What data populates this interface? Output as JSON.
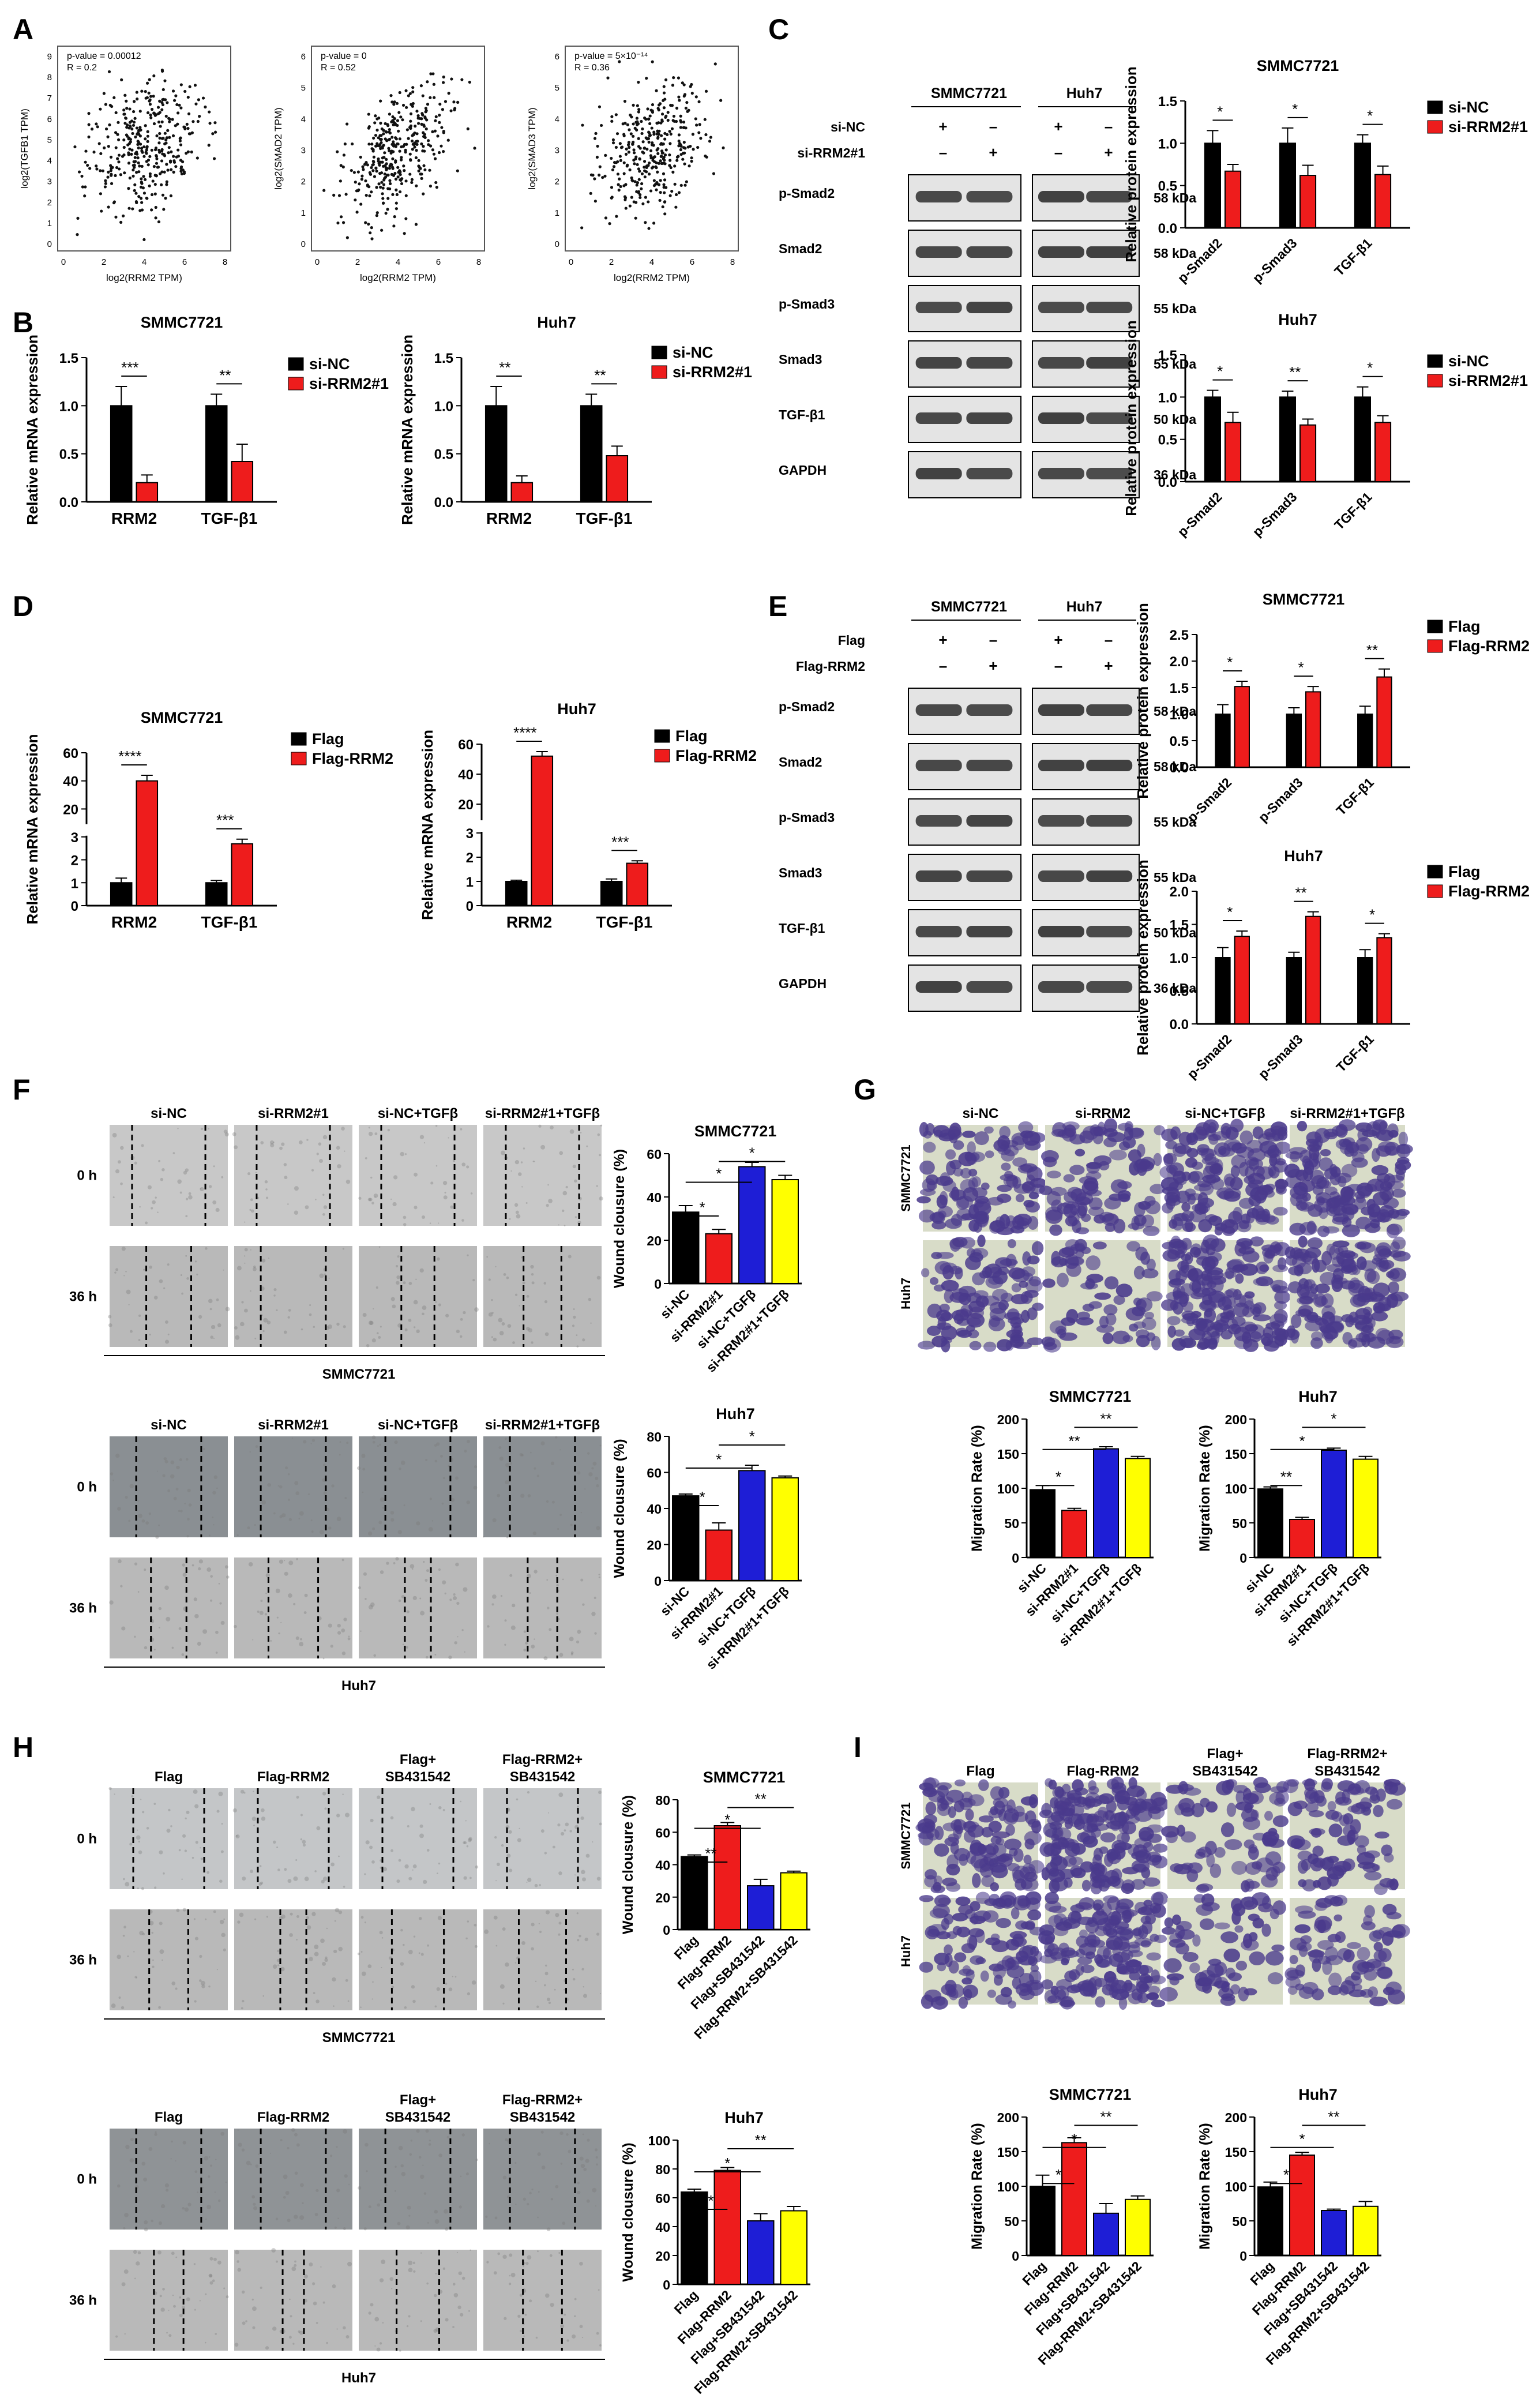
{
  "panels": {
    "A": {
      "letter": "A",
      "plots": [
        {
          "stats": [
            "p-value = 0.00012",
            "R = 0.2"
          ],
          "ylabel": "log2(TGFB1 TPM)",
          "xlabel": "log2(RRM2 TPM)",
          "xticks": [
            "0",
            "2",
            "4",
            "6",
            "8"
          ],
          "yticks": [
            "0",
            "1",
            "2",
            "3",
            "4",
            "5",
            "6",
            "7",
            "8",
            "9"
          ],
          "corr": 0.2
        },
        {
          "stats": [
            "p-value = 0",
            "R = 0.52"
          ],
          "ylabel": "log2(SMAD2 TPM)",
          "xlabel": "log2(RRM2 TPM)",
          "xticks": [
            "0",
            "2",
            "4",
            "6",
            "8"
          ],
          "yticks": [
            "0",
            "1",
            "2",
            "3",
            "4",
            "5",
            "6"
          ],
          "corr": 0.52
        },
        {
          "stats": [
            "p-value = 5×10⁻¹⁴",
            "R = 0.36"
          ],
          "ylabel": "log2(SMAD3 TPM)",
          "xlabel": "log2(RRM2 TPM)",
          "xticks": [
            "0",
            "2",
            "4",
            "6",
            "8"
          ],
          "yticks": [
            "0",
            "1",
            "2",
            "3",
            "4",
            "5",
            "6"
          ],
          "corr": 0.36
        }
      ]
    },
    "B": {
      "letter": "B"
    },
    "C": {
      "letter": "C",
      "cells": [
        "SMMC7721",
        "Huh7"
      ],
      "rows": [
        "si-NC",
        "si-RRM2#1"
      ],
      "signs": [
        [
          "+",
          "–",
          "+",
          "–"
        ],
        [
          "–",
          "+",
          "–",
          "+"
        ]
      ],
      "bands": [
        {
          "name": "p-Smad2",
          "kda": "58 kDa"
        },
        {
          "name": "Smad2",
          "kda": "58 kDa"
        },
        {
          "name": "p-Smad3",
          "kda": "55 kDa"
        },
        {
          "name": "Smad3",
          "kda": "55 kDa"
        },
        {
          "name": "TGF-β1",
          "kda": "50 kDa"
        },
        {
          "name": "GAPDH",
          "kda": "36 kDa"
        }
      ]
    },
    "D": {
      "letter": "D"
    },
    "E": {
      "letter": "E",
      "cells": [
        "SMMC7721",
        "Huh7"
      ],
      "rows": [
        "Flag",
        "Flag-RRM2"
      ],
      "signs": [
        [
          "+",
          "–",
          "+",
          "–"
        ],
        [
          "–",
          "+",
          "–",
          "+"
        ]
      ],
      "bands": [
        {
          "name": "p-Smad2",
          "kda": "58 kDa"
        },
        {
          "name": "Smad2",
          "kda": "58 kDa"
        },
        {
          "name": "p-Smad3",
          "kda": "55 kDa"
        },
        {
          "name": "Smad3",
          "kda": "55 kDa"
        },
        {
          "name": "TGF-β1",
          "kda": "50 kDa"
        },
        {
          "name": "GAPDH",
          "kda": "36 kDa"
        }
      ]
    },
    "F": {
      "letter": "F",
      "headers_top": [
        "si-NC",
        "si-RRM2#1",
        "si-NC+TGFβ",
        "si-RRM2#1+TGFβ"
      ],
      "headers_bottom": [
        "si-NC",
        "si-RRM2#1",
        "si-NC+TGFβ",
        "si-RRM2#1+TGFβ"
      ],
      "times": [
        "0 h",
        "36 h"
      ],
      "cell_top": "SMMC7721",
      "cell_bottom": "Huh7"
    },
    "G": {
      "letter": "G",
      "headers": [
        "si-NC",
        "si-RRM2",
        "si-NC+TGFβ",
        "si-RRM2#1+TGFβ"
      ],
      "rows": [
        "SMMC7721",
        "Huh7"
      ]
    },
    "H": {
      "letter": "H",
      "headers": [
        "Flag",
        "Flag-RRM2",
        "Flag+\nSB431542",
        "Flag-RRM2+\nSB431542"
      ],
      "times": [
        "0 h",
        "36 h"
      ],
      "cell_top": "SMMC7721",
      "cell_bottom": "Huh7"
    },
    "I": {
      "letter": "I",
      "headers": [
        "Flag",
        "Flag-RRM2",
        "Flag+\nSB431542",
        "Flag-RRM2+\nSB431542"
      ],
      "rows": [
        "SMMC7721",
        "Huh7"
      ]
    }
  },
  "colors": {
    "black": "#000000",
    "red": "#ee1c1c",
    "blue": "#1e1ed6",
    "yellow": "#ffff00"
  },
  "chart_data": [
    {
      "id": "B1",
      "type": "bar",
      "title": "SMMC7721",
      "ylabel": "Relative mRNA expression",
      "categories": [
        "RRM2",
        "TGF-β1"
      ],
      "ylim": [
        0,
        1.5
      ],
      "yticks": [
        "0.0",
        "0.5",
        "1.0",
        "1.5"
      ],
      "series": [
        {
          "name": "si-NC",
          "color": "#000000",
          "values": [
            1.0,
            1.0
          ],
          "err": [
            0.2,
            0.12
          ]
        },
        {
          "name": "si-RRM2#1",
          "color": "#ee1c1c",
          "values": [
            0.2,
            0.42
          ],
          "err": [
            0.08,
            0.18
          ]
        }
      ],
      "sig": [
        {
          "cat": 0,
          "text": "***"
        },
        {
          "cat": 1,
          "text": "**"
        }
      ]
    },
    {
      "id": "B2",
      "type": "bar",
      "title": "Huh7",
      "ylabel": "Relative mRNA expression",
      "categories": [
        "RRM2",
        "TGF-β1"
      ],
      "ylim": [
        0,
        1.5
      ],
      "yticks": [
        "0.0",
        "0.5",
        "1.0",
        "1.5"
      ],
      "series": [
        {
          "name": "si-NC",
          "color": "#000000",
          "values": [
            1.0,
            1.0
          ],
          "err": [
            0.2,
            0.12
          ]
        },
        {
          "name": "si-RRM2#1",
          "color": "#ee1c1c",
          "values": [
            0.2,
            0.48
          ],
          "err": [
            0.07,
            0.1
          ]
        }
      ],
      "sig": [
        {
          "cat": 0,
          "text": "**"
        },
        {
          "cat": 1,
          "text": "**"
        }
      ]
    },
    {
      "id": "C1",
      "type": "bar",
      "title": "SMMC7721",
      "ylabel": "Relative protein expression",
      "categories": [
        "p-Smad2",
        "p-Smad3",
        "TGF-β1"
      ],
      "ylim": [
        0,
        1.5
      ],
      "yticks": [
        "0.0",
        "0.5",
        "1.0",
        "1.5"
      ],
      "series": [
        {
          "name": "si-NC",
          "color": "#000000",
          "values": [
            1.0,
            1.0,
            1.0
          ],
          "err": [
            0.15,
            0.18,
            0.1
          ]
        },
        {
          "name": "si-RRM2#1",
          "color": "#ee1c1c",
          "values": [
            0.67,
            0.62,
            0.63
          ],
          "err": [
            0.08,
            0.12,
            0.1
          ]
        }
      ],
      "sig": [
        {
          "cat": 0,
          "text": "*"
        },
        {
          "cat": 1,
          "text": "*"
        },
        {
          "cat": 2,
          "text": "*"
        }
      ]
    },
    {
      "id": "C2",
      "type": "bar",
      "title": "Huh7",
      "ylabel": "Relative protein expression",
      "categories": [
        "p-Smad2",
        "p-Smad3",
        "TGF-β1"
      ],
      "ylim": [
        0,
        1.5
      ],
      "yticks": [
        "0.0",
        "0.5",
        "1.0",
        "1.5"
      ],
      "series": [
        {
          "name": "si-NC",
          "color": "#000000",
          "values": [
            1.0,
            1.0,
            1.0
          ],
          "err": [
            0.08,
            0.07,
            0.12
          ]
        },
        {
          "name": "si-RRM2#1",
          "color": "#ee1c1c",
          "values": [
            0.7,
            0.67,
            0.7
          ],
          "err": [
            0.12,
            0.07,
            0.08
          ]
        }
      ],
      "sig": [
        {
          "cat": 0,
          "text": "*"
        },
        {
          "cat": 1,
          "text": "**"
        },
        {
          "cat": 2,
          "text": "*"
        }
      ]
    },
    {
      "id": "D1",
      "type": "bar",
      "title": "SMMC7721",
      "ylabel": "Relative mRNA expression",
      "categories": [
        "RRM2",
        "TGF-β1"
      ],
      "broken_axis": true,
      "yticks": [
        "0",
        "1",
        "2",
        "3",
        "20",
        "40",
        "60"
      ],
      "series": [
        {
          "name": "Flag",
          "color": "#000000",
          "values": [
            1.0,
            1.0
          ],
          "err": [
            0.2,
            0.1
          ]
        },
        {
          "name": "Flag-RRM2",
          "color": "#ee1c1c",
          "values": [
            40,
            2.7
          ],
          "err": [
            4,
            0.2
          ]
        }
      ],
      "sig": [
        {
          "cat": 0,
          "text": "****"
        },
        {
          "cat": 1,
          "text": "***"
        }
      ]
    },
    {
      "id": "D2",
      "type": "bar",
      "title": "Huh7",
      "ylabel": "Relative mRNA expression",
      "categories": [
        "RRM2",
        "TGF-β1"
      ],
      "broken_axis": true,
      "yticks": [
        "0",
        "1",
        "2",
        "3",
        "20",
        "40",
        "60"
      ],
      "series": [
        {
          "name": "Flag",
          "color": "#000000",
          "values": [
            1.0,
            1.0
          ],
          "err": [
            0.05,
            0.1
          ]
        },
        {
          "name": "Flag-RRM2",
          "color": "#ee1c1c",
          "values": [
            52,
            1.75
          ],
          "err": [
            3,
            0.1
          ]
        }
      ],
      "sig": [
        {
          "cat": 0,
          "text": "****"
        },
        {
          "cat": 1,
          "text": "***"
        }
      ]
    },
    {
      "id": "E1",
      "type": "bar",
      "title": "SMMC7721",
      "ylabel": "Relative protein expression",
      "categories": [
        "p-Smad2",
        "p-Smad3",
        "TGF-β1"
      ],
      "ylim": [
        0,
        2.5
      ],
      "yticks": [
        "0.0",
        "0.5",
        "1.0",
        "1.5",
        "2.0",
        "2.5"
      ],
      "series": [
        {
          "name": "Flag",
          "color": "#000000",
          "values": [
            1.0,
            1.0,
            1.0
          ],
          "err": [
            0.18,
            0.12,
            0.15
          ]
        },
        {
          "name": "Flag-RRM2",
          "color": "#ee1c1c",
          "values": [
            1.52,
            1.42,
            1.7
          ],
          "err": [
            0.1,
            0.1,
            0.15
          ]
        }
      ],
      "sig": [
        {
          "cat": 0,
          "text": "*"
        },
        {
          "cat": 1,
          "text": "*"
        },
        {
          "cat": 2,
          "text": "**"
        }
      ]
    },
    {
      "id": "E2",
      "type": "bar",
      "title": "Huh7",
      "ylabel": "Relative protein expression",
      "categories": [
        "p-Smad2",
        "p-Smad3",
        "TGF-β1"
      ],
      "ylim": [
        0,
        2.0
      ],
      "yticks": [
        "0.0",
        "0.5",
        "1.0",
        "1.5",
        "2.0"
      ],
      "series": [
        {
          "name": "Flag",
          "color": "#000000",
          "values": [
            1.0,
            1.0,
            1.0
          ],
          "err": [
            0.15,
            0.08,
            0.12
          ]
        },
        {
          "name": "Flag-RRM2",
          "color": "#ee1c1c",
          "values": [
            1.32,
            1.62,
            1.3
          ],
          "err": [
            0.08,
            0.07,
            0.06
          ]
        }
      ],
      "sig": [
        {
          "cat": 0,
          "text": "*"
        },
        {
          "cat": 1,
          "text": "**"
        },
        {
          "cat": 2,
          "text": "*"
        }
      ]
    },
    {
      "id": "F1",
      "type": "bar",
      "title": "SMMC7721",
      "ylabel": "Wound clousure (%)",
      "categories": [
        "si-NC",
        "si-RRM2#1",
        "si-NC+TGFβ",
        "si-RRM2#1+TGFβ"
      ],
      "ylim": [
        0,
        60
      ],
      "yticks": [
        "0",
        "20",
        "40",
        "60"
      ],
      "values": [
        33,
        23,
        54,
        48
      ],
      "err": [
        3,
        2,
        2,
        2
      ],
      "colors": [
        "#000000",
        "#ee1c1c",
        "#1e1ed6",
        "#ffff00"
      ],
      "sig": [
        {
          "from": 0,
          "to": 1,
          "text": "*"
        },
        {
          "from": 0,
          "to": 2,
          "text": "*"
        },
        {
          "from": 1,
          "to": 3,
          "text": "*"
        }
      ]
    },
    {
      "id": "F2",
      "type": "bar",
      "title": "Huh7",
      "ylabel": "Wound clousure (%)",
      "categories": [
        "si-NC",
        "si-RRM2#1",
        "si-NC+TGFβ",
        "si-RRM2#1+TGFβ"
      ],
      "ylim": [
        0,
        80
      ],
      "yticks": [
        "0",
        "20",
        "40",
        "60",
        "80"
      ],
      "values": [
        47,
        28,
        61,
        57
      ],
      "err": [
        1,
        4,
        3,
        1
      ],
      "colors": [
        "#000000",
        "#ee1c1c",
        "#1e1ed6",
        "#ffff00"
      ],
      "sig": [
        {
          "from": 0,
          "to": 1,
          "text": "*"
        },
        {
          "from": 0,
          "to": 2,
          "text": "*"
        },
        {
          "from": 1,
          "to": 3,
          "text": "*"
        }
      ]
    },
    {
      "id": "G1",
      "type": "bar",
      "title": "SMMC7721",
      "ylabel": "Migration Rate (%)",
      "categories": [
        "si-NC",
        "si-RRM2#1",
        "si-NC+TGFβ",
        "si-RRM2#1+TGFβ"
      ],
      "ylim": [
        0,
        200
      ],
      "yticks": [
        "0",
        "50",
        "100",
        "150",
        "200"
      ],
      "values": [
        98,
        68,
        157,
        143
      ],
      "err": [
        6,
        3,
        3,
        3
      ],
      "colors": [
        "#000000",
        "#ee1c1c",
        "#1e1ed6",
        "#ffff00"
      ],
      "sig": [
        {
          "from": 0,
          "to": 1,
          "text": "*"
        },
        {
          "from": 0,
          "to": 2,
          "text": "**"
        },
        {
          "from": 1,
          "to": 3,
          "text": "**"
        }
      ]
    },
    {
      "id": "G2",
      "type": "bar",
      "title": "Huh7",
      "ylabel": "Migration Rate (%)",
      "categories": [
        "si-NC",
        "si-RRM2#1",
        "si-NC+TGFβ",
        "si-RRM2#1+TGFβ"
      ],
      "ylim": [
        0,
        200
      ],
      "yticks": [
        "0",
        "50",
        "100",
        "150",
        "200"
      ],
      "values": [
        99,
        55,
        155,
        142
      ],
      "err": [
        3,
        3,
        3,
        4
      ],
      "colors": [
        "#000000",
        "#ee1c1c",
        "#1e1ed6",
        "#ffff00"
      ],
      "sig": [
        {
          "from": 0,
          "to": 1,
          "text": "**"
        },
        {
          "from": 0,
          "to": 2,
          "text": "*"
        },
        {
          "from": 1,
          "to": 3,
          "text": "*"
        }
      ]
    },
    {
      "id": "H1",
      "type": "bar",
      "title": "SMMC7721",
      "ylabel": "Wound clousure (%)",
      "categories": [
        "Flag",
        "Flag-RRM2",
        "Flag+SB431542",
        "Flag-RRM2+SB431542"
      ],
      "ylim": [
        0,
        80
      ],
      "yticks": [
        "0",
        "20",
        "40",
        "60",
        "80"
      ],
      "values": [
        45,
        64,
        27,
        35
      ],
      "err": [
        1,
        2,
        4,
        1
      ],
      "colors": [
        "#000000",
        "#ee1c1c",
        "#1e1ed6",
        "#ffff00"
      ],
      "sig": [
        {
          "from": 0,
          "to": 1,
          "text": "**"
        },
        {
          "from": 0,
          "to": 2,
          "text": "*"
        },
        {
          "from": 1,
          "to": 3,
          "text": "**"
        }
      ]
    },
    {
      "id": "H2",
      "type": "bar",
      "title": "Huh7",
      "ylabel": "Wound clousure (%)",
      "categories": [
        "Flag",
        "Flag-RRM2",
        "Flag+SB431542",
        "Flag-RRM2+SB431542"
      ],
      "ylim": [
        0,
        100
      ],
      "yticks": [
        "0",
        "20",
        "40",
        "60",
        "80",
        "100"
      ],
      "values": [
        64,
        79,
        44,
        51
      ],
      "err": [
        2,
        2,
        5,
        3
      ],
      "colors": [
        "#000000",
        "#ee1c1c",
        "#1e1ed6",
        "#ffff00"
      ],
      "sig": [
        {
          "from": 0,
          "to": 1,
          "text": "*"
        },
        {
          "from": 0,
          "to": 2,
          "text": "*"
        },
        {
          "from": 1,
          "to": 3,
          "text": "**"
        }
      ]
    },
    {
      "id": "I1",
      "type": "bar",
      "title": "SMMC7721",
      "ylabel": "Migration Rate (%)",
      "categories": [
        "Flag",
        "Flag-RRM2",
        "Flag+SB431542",
        "Flag-RRM2+SB431542"
      ],
      "ylim": [
        0,
        200
      ],
      "yticks": [
        "0",
        "50",
        "100",
        "150",
        "200"
      ],
      "values": [
        100,
        163,
        61,
        81
      ],
      "err": [
        16,
        7,
        14,
        5
      ],
      "colors": [
        "#000000",
        "#ee1c1c",
        "#1e1ed6",
        "#ffff00"
      ],
      "sig": [
        {
          "from": 0,
          "to": 1,
          "text": "*"
        },
        {
          "from": 0,
          "to": 2,
          "text": "*"
        },
        {
          "from": 1,
          "to": 3,
          "text": "**"
        }
      ]
    },
    {
      "id": "I2",
      "type": "bar",
      "title": "Huh7",
      "ylabel": "Migration Rate (%)",
      "categories": [
        "Flag",
        "Flag-RRM2",
        "Flag+SB431542",
        "Flag-RRM2+SB431542"
      ],
      "ylim": [
        0,
        200
      ],
      "yticks": [
        "0",
        "50",
        "100",
        "150",
        "200"
      ],
      "values": [
        99,
        145,
        65,
        71
      ],
      "err": [
        7,
        4,
        2,
        7
      ],
      "colors": [
        "#000000",
        "#ee1c1c",
        "#1e1ed6",
        "#ffff00"
      ],
      "sig": [
        {
          "from": 0,
          "to": 1,
          "text": "*"
        },
        {
          "from": 0,
          "to": 2,
          "text": "*"
        },
        {
          "from": 1,
          "to": 3,
          "text": "**"
        }
      ]
    }
  ]
}
